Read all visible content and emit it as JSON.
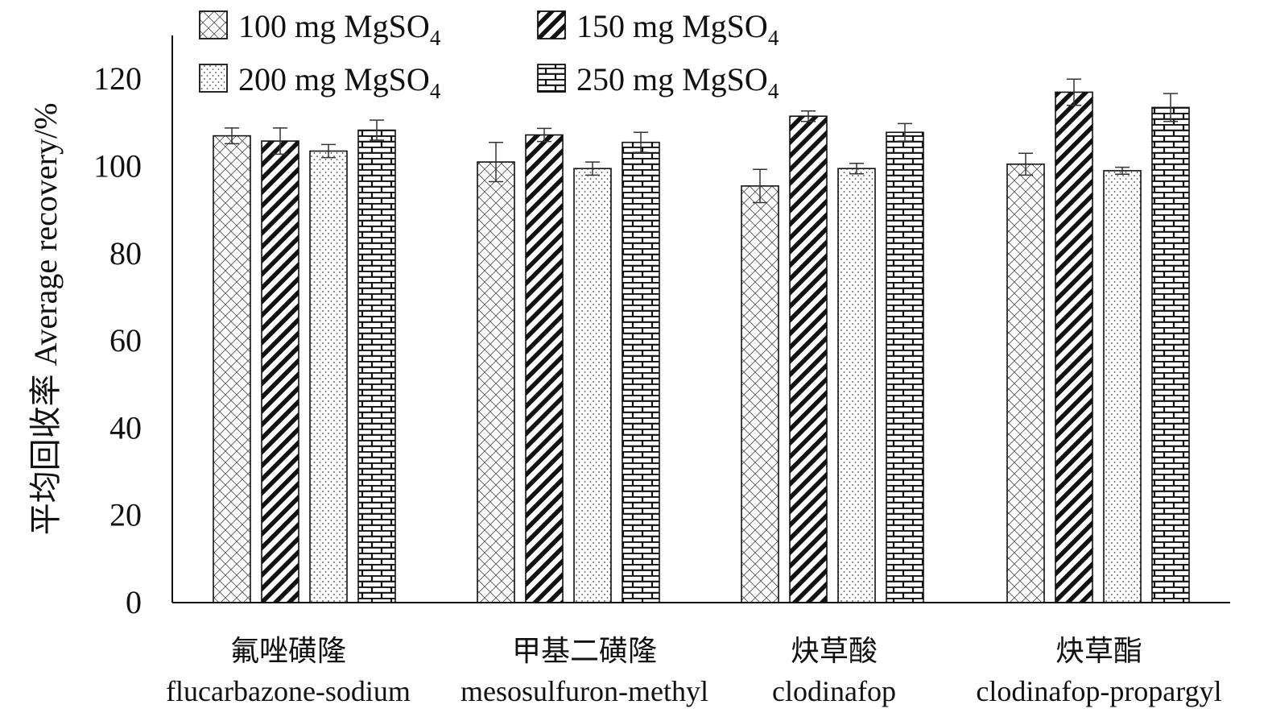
{
  "chart_data": {
    "type": "bar",
    "ylabel": "平均回收率 Average recovery/%",
    "ylim": [
      0,
      130
    ],
    "yticks": [
      0,
      20,
      40,
      60,
      80,
      100,
      120
    ],
    "grid": false,
    "legend_position": "top-left",
    "categories": [
      {
        "cn": "氟唑磺隆",
        "en": "flucarbazone-sodium"
      },
      {
        "cn": "甲基二磺隆",
        "en": "mesosulfuron-methyl"
      },
      {
        "cn": "炔草酸",
        "en": "clodinafop"
      },
      {
        "cn": "炔草酯",
        "en": "clodinafop-propargyl"
      }
    ],
    "series": [
      {
        "name": "100 mg MgSO",
        "subscript": "4",
        "pattern": "crosshatch",
        "values": [
          107,
          101,
          95.5,
          100.5
        ],
        "errors": [
          1.8,
          4.5,
          3.8,
          2.5
        ]
      },
      {
        "name": "150 mg MgSO",
        "subscript": "4",
        "pattern": "diagonal",
        "values": [
          105.8,
          107.2,
          111.5,
          117
        ],
        "errors": [
          3,
          1.5,
          1.2,
          3
        ]
      },
      {
        "name": "200 mg MgSO",
        "subscript": "4",
        "pattern": "dotted",
        "values": [
          103.5,
          99.5,
          99.5,
          99
        ],
        "errors": [
          1.5,
          1.5,
          1.2,
          0.8
        ]
      },
      {
        "name": "250 mg MgSO",
        "subscript": "4",
        "pattern": "brick",
        "values": [
          108.3,
          105.5,
          107.8,
          113.5
        ],
        "errors": [
          2.3,
          2.3,
          2,
          3.2
        ]
      }
    ]
  }
}
